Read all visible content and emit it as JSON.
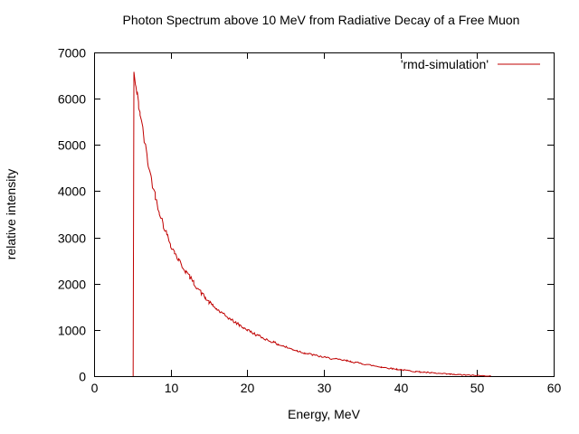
{
  "chart_data": {
    "type": "line",
    "title": "Photon Spectrum above 10 MeV from Radiative Decay of a Free Muon",
    "xlabel": "Energy, MeV",
    "ylabel": "relative intensity",
    "xlim": [
      0,
      60
    ],
    "ylim": [
      0,
      7000
    ],
    "xticks": [
      0,
      10,
      20,
      30,
      40,
      50,
      60
    ],
    "yticks": [
      0,
      1000,
      2000,
      3000,
      4000,
      5000,
      6000,
      7000
    ],
    "grid": false,
    "legend": {
      "position": "top-right-inside"
    },
    "series": [
      {
        "name": "'rmd-simulation'",
        "color": "#c00000",
        "points": [
          [
            5.1,
            0
          ],
          [
            5.2,
            6580
          ],
          [
            5.4,
            6300
          ],
          [
            5.6,
            6100
          ],
          [
            5.8,
            5890
          ],
          [
            6.0,
            5700
          ],
          [
            6.5,
            5150
          ],
          [
            7.0,
            4650
          ],
          [
            7.5,
            4250
          ],
          [
            8.0,
            3900
          ],
          [
            8.5,
            3580
          ],
          [
            9.0,
            3300
          ],
          [
            9.5,
            3060
          ],
          [
            10.0,
            2850
          ],
          [
            10.5,
            2680
          ],
          [
            11.0,
            2520
          ],
          [
            11.5,
            2380
          ],
          [
            12.0,
            2260
          ],
          [
            12.5,
            2140
          ],
          [
            13.0,
            2020
          ],
          [
            13.5,
            1910
          ],
          [
            14.0,
            1800
          ],
          [
            14.5,
            1700
          ],
          [
            15.0,
            1600
          ],
          [
            15.5,
            1520
          ],
          [
            16.0,
            1450
          ],
          [
            16.5,
            1380
          ],
          [
            17.0,
            1320
          ],
          [
            17.5,
            1265
          ],
          [
            18.0,
            1210
          ],
          [
            18.5,
            1155
          ],
          [
            19.0,
            1100
          ],
          [
            19.5,
            1050
          ],
          [
            20.0,
            1000
          ],
          [
            20.5,
            955
          ],
          [
            21.0,
            910
          ],
          [
            21.5,
            870
          ],
          [
            22.0,
            830
          ],
          [
            22.5,
            795
          ],
          [
            23.0,
            760
          ],
          [
            23.5,
            725
          ],
          [
            24.0,
            690
          ],
          [
            24.5,
            660
          ],
          [
            25.0,
            630
          ],
          [
            25.5,
            600
          ],
          [
            26.0,
            575
          ],
          [
            26.5,
            550
          ],
          [
            27.0,
            525
          ],
          [
            27.5,
            500
          ],
          [
            28.0,
            480
          ],
          [
            28.5,
            462
          ],
          [
            29.0,
            445
          ],
          [
            29.5,
            427
          ],
          [
            30.0,
            410
          ],
          [
            30.5,
            395
          ],
          [
            31.0,
            380
          ],
          [
            31.5,
            367
          ],
          [
            32.0,
            355
          ],
          [
            32.5,
            342
          ],
          [
            33.0,
            330
          ],
          [
            33.5,
            315
          ],
          [
            34.0,
            300
          ],
          [
            34.5,
            285
          ],
          [
            35.0,
            270
          ],
          [
            35.5,
            255
          ],
          [
            36.0,
            240
          ],
          [
            36.5,
            225
          ],
          [
            37.0,
            210
          ],
          [
            37.5,
            197
          ],
          [
            38.0,
            185
          ],
          [
            38.5,
            172
          ],
          [
            39.0,
            160
          ],
          [
            39.5,
            150
          ],
          [
            40.0,
            140
          ],
          [
            40.5,
            130
          ],
          [
            41.0,
            120
          ],
          [
            41.5,
            110
          ],
          [
            42.0,
            100
          ],
          [
            42.5,
            92
          ],
          [
            43.0,
            85
          ],
          [
            43.5,
            77
          ],
          [
            44.0,
            70
          ],
          [
            44.5,
            63
          ],
          [
            45.0,
            57
          ],
          [
            45.5,
            51
          ],
          [
            46.0,
            45
          ],
          [
            46.5,
            40
          ],
          [
            47.0,
            35
          ],
          [
            47.5,
            31
          ],
          [
            48.0,
            27
          ],
          [
            48.5,
            23
          ],
          [
            49.0,
            20
          ],
          [
            49.5,
            16
          ],
          [
            50.0,
            13
          ],
          [
            50.5,
            10
          ],
          [
            51.0,
            6
          ],
          [
            51.5,
            2
          ],
          [
            51.8,
            0
          ]
        ],
        "render_noise": {
          "seed": 42,
          "rel": 0.02,
          "abs": 12,
          "bin_mev": 0.18,
          "noise_start_mev": 5.4
        }
      }
    ]
  }
}
